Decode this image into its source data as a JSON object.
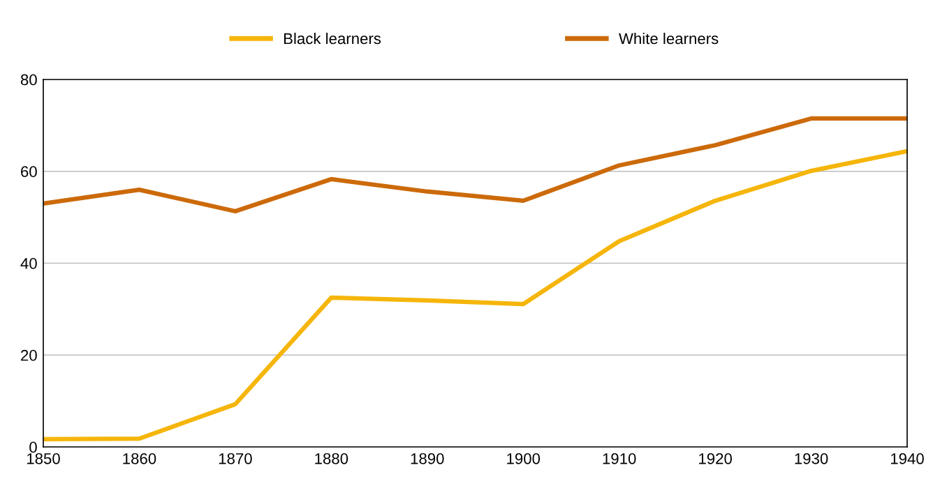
{
  "chart_data": {
    "type": "line",
    "x": [
      1850,
      1860,
      1870,
      1880,
      1890,
      1900,
      1910,
      1920,
      1930,
      1940
    ],
    "series": [
      {
        "name": "Black learners",
        "color": "#f5b50a",
        "values": [
          1.7,
          1.8,
          9.3,
          32.5,
          31.9,
          31.1,
          44.8,
          53.6,
          60.1,
          64.4
        ]
      },
      {
        "name": "White learners",
        "color": "#cc6a0a",
        "values": [
          53.0,
          56.0,
          51.3,
          58.3,
          55.6,
          53.6,
          61.3,
          65.7,
          71.5,
          71.5
        ]
      }
    ],
    "xlim": [
      1850,
      1940
    ],
    "xticks": [
      1850,
      1860,
      1870,
      1880,
      1890,
      1900,
      1910,
      1920,
      1930,
      1940
    ],
    "ylim": [
      0,
      80
    ],
    "yticks": [
      0,
      20,
      40,
      60,
      80
    ],
    "grid": "y",
    "legend": "top",
    "marker": "none",
    "line_style": "solid"
  }
}
